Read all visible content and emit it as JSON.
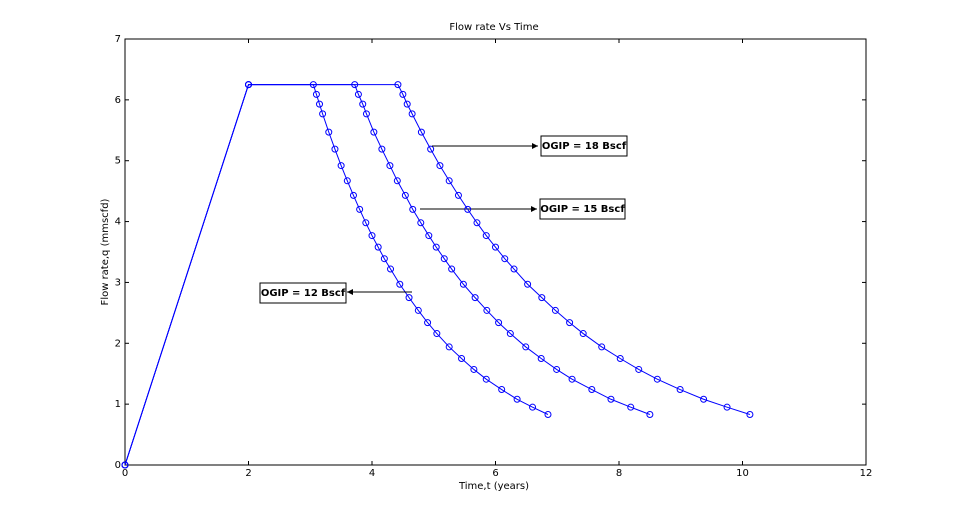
{
  "chart_data": {
    "type": "line",
    "title": "Flow rate Vs Time",
    "x_label": "Time,t (years)",
    "y_label": "Flow rate,q (mmscfd)",
    "xlim": [
      0,
      12
    ],
    "xticks": [
      0,
      2,
      4,
      6,
      8,
      10,
      12
    ],
    "ylim": [
      0,
      7
    ],
    "yticks": [
      0,
      1,
      2,
      3,
      4,
      5,
      6,
      7
    ],
    "grid": false,
    "series": [
      {
        "name": "OGIP = 12 Bscf",
        "color": "#0000ff",
        "x": [
          0,
          2,
          3.05,
          3.1,
          3.15,
          3.2,
          3.3,
          3.4,
          3.5,
          3.6,
          3.7,
          3.8,
          3.9,
          4.0,
          4.1,
          4.2,
          4.3,
          4.45,
          4.6,
          4.75,
          4.9,
          5.05,
          5.25,
          5.45,
          5.65,
          5.85,
          6.1,
          6.35,
          6.6,
          6.85
        ],
        "values": [
          0,
          6.25,
          6.25,
          6.09,
          5.93,
          5.77,
          5.47,
          5.19,
          4.92,
          4.67,
          4.43,
          4.2,
          3.98,
          3.77,
          3.58,
          3.39,
          3.22,
          2.97,
          2.75,
          2.54,
          2.34,
          2.16,
          1.94,
          1.75,
          1.57,
          1.41,
          1.24,
          1.08,
          0.95,
          0.83
        ]
      },
      {
        "name": "OGIP = 15 Bscf",
        "color": "#0000ff",
        "x": [
          0,
          2,
          3.72,
          3.78,
          3.85,
          3.91,
          4.03,
          4.16,
          4.29,
          4.41,
          4.54,
          4.66,
          4.79,
          4.92,
          5.04,
          5.17,
          5.29,
          5.48,
          5.67,
          5.86,
          6.05,
          6.24,
          6.49,
          6.74,
          6.99,
          7.24,
          7.56,
          7.87,
          8.19,
          8.5
        ],
        "values": [
          0,
          6.25,
          6.25,
          6.09,
          5.93,
          5.77,
          5.47,
          5.19,
          4.92,
          4.67,
          4.43,
          4.2,
          3.98,
          3.77,
          3.58,
          3.39,
          3.22,
          2.97,
          2.75,
          2.54,
          2.34,
          2.16,
          1.94,
          1.75,
          1.57,
          1.41,
          1.24,
          1.08,
          0.95,
          0.83
        ]
      },
      {
        "name": "OGIP = 18 Bscf",
        "color": "#0000ff",
        "x": [
          0,
          2,
          4.42,
          4.5,
          4.57,
          4.65,
          4.8,
          4.95,
          5.1,
          5.25,
          5.4,
          5.55,
          5.7,
          5.85,
          6.0,
          6.15,
          6.3,
          6.52,
          6.75,
          6.97,
          7.2,
          7.42,
          7.72,
          8.02,
          8.32,
          8.62,
          8.99,
          9.37,
          9.75,
          10.12
        ],
        "values": [
          0,
          6.25,
          6.25,
          6.09,
          5.93,
          5.77,
          5.47,
          5.19,
          4.92,
          4.67,
          4.43,
          4.2,
          3.98,
          3.77,
          3.58,
          3.39,
          3.22,
          2.97,
          2.75,
          2.54,
          2.34,
          2.16,
          1.94,
          1.75,
          1.57,
          1.41,
          1.24,
          1.08,
          0.95,
          0.83
        ]
      }
    ]
  }
}
